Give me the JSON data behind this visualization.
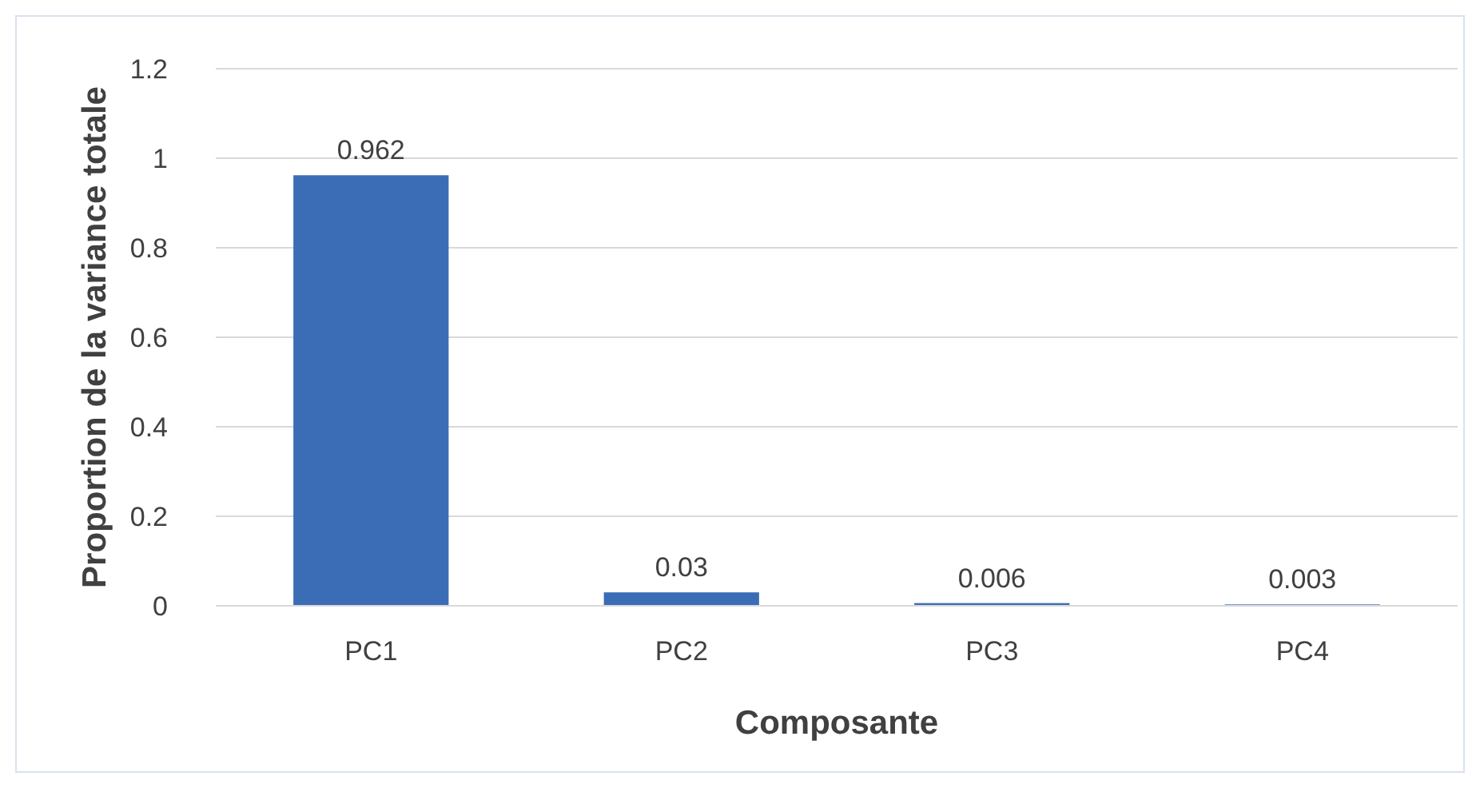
{
  "chart_data": {
    "type": "bar",
    "xlabel": "Composante",
    "ylabel": "Proportion de la variance totale",
    "categories": [
      "PC1",
      "PC2",
      "PC3",
      "PC4"
    ],
    "values": [
      0.962,
      0.03,
      0.006,
      0.003
    ],
    "color": "#3a6db5",
    "ylim": [
      0,
      1.2
    ],
    "yticks": [
      0,
      0.2,
      0.4,
      0.6,
      0.8,
      1,
      1.2
    ],
    "grid": "y",
    "data_labels": true
  }
}
